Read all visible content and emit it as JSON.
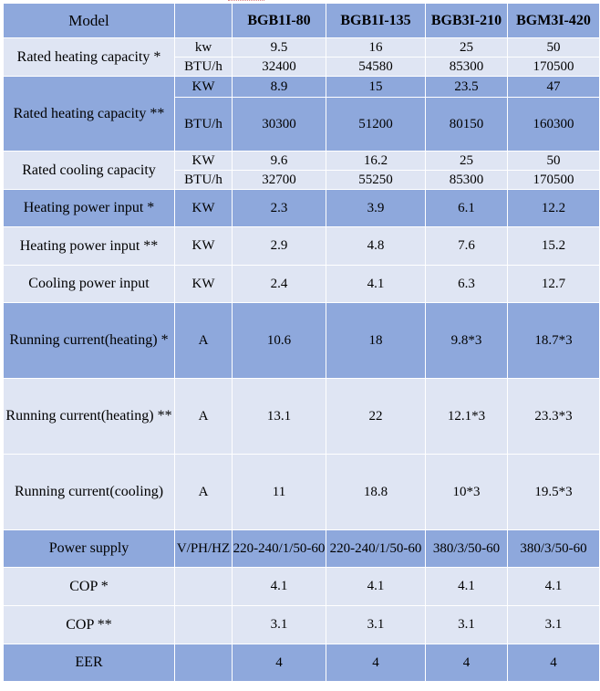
{
  "header": {
    "model_label": "Model",
    "models": [
      "BGB1I-80",
      "BGB1I-135",
      "BGB3I-210",
      "BGM3I-420"
    ]
  },
  "rows": {
    "rhc1": {
      "param": "Rated heating capacity *",
      "unit_a": "kw",
      "values_a": [
        "9.5",
        "16",
        "25",
        "50"
      ],
      "unit_b": "BTU/h",
      "values_b": [
        "32400",
        "54580",
        "85300",
        "170500"
      ]
    },
    "rhc2": {
      "param": "Rated heating capacity **",
      "unit_a": "KW",
      "values_a": [
        "8.9",
        "15",
        "23.5",
        "47"
      ],
      "unit_b": "BTU/h",
      "values_b": [
        "30300",
        "51200",
        "80150",
        "160300"
      ]
    },
    "rcc": {
      "param": "Rated cooling capacity",
      "unit_a": "KW",
      "values_a": [
        "9.6",
        "16.2",
        "25",
        "50"
      ],
      "unit_b": "BTU/h",
      "values_b": [
        "32700",
        "55250",
        "85300",
        "170500"
      ]
    },
    "hpi1": {
      "param": "Heating power input *",
      "unit": "KW",
      "values": [
        "2.3",
        "3.9",
        "6.1",
        "12.2"
      ]
    },
    "hpi2": {
      "param": "Heating power input **",
      "unit": "KW",
      "values": [
        "2.9",
        "4.8",
        "7.6",
        "15.2"
      ]
    },
    "cpi": {
      "param": "Cooling power input",
      "unit": "KW",
      "values": [
        "2.4",
        "4.1",
        "6.3",
        "12.7"
      ]
    },
    "rch1": {
      "param": "Running current(heating) *",
      "unit": "A",
      "values": [
        "10.6",
        "18",
        "9.8*3",
        "18.7*3"
      ]
    },
    "rch2": {
      "param": "Running current(heating) **",
      "unit": "A",
      "values": [
        "13.1",
        "22",
        "12.1*3",
        "23.3*3"
      ]
    },
    "rcc2": {
      "param": "Running current(cooling)",
      "unit": "A",
      "values": [
        "11",
        "18.8",
        "10*3",
        "19.5*3"
      ]
    },
    "ps": {
      "param": "Power supply",
      "unit": "V/PH/HZ",
      "values": [
        "220-240/1/50-60",
        "220-240/1/50-60",
        "380/3/50-60",
        "380/3/50-60"
      ]
    },
    "cop1": {
      "param": "COP *",
      "unit": "",
      "values": [
        "4.1",
        "4.1",
        "4.1",
        "4.1"
      ]
    },
    "cop2": {
      "param": "COP **",
      "unit": "",
      "values": [
        "3.1",
        "3.1",
        "3.1",
        "3.1"
      ]
    },
    "eer": {
      "param": "EER",
      "unit": "",
      "values": [
        "4",
        "4",
        "4",
        "4"
      ]
    }
  }
}
